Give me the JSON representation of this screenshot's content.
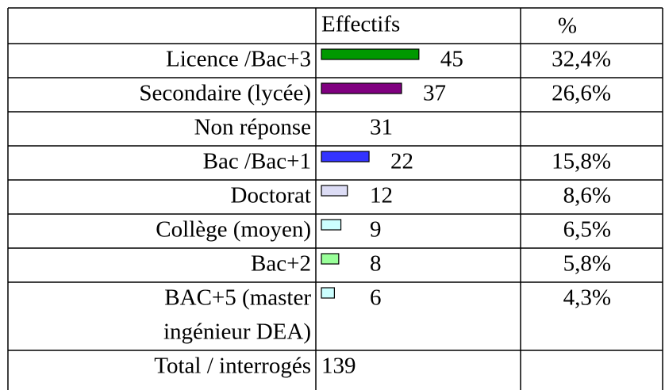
{
  "table": {
    "header": {
      "effectifs": "Effectifs",
      "percent": "%"
    },
    "rows": [
      {
        "label": "Licence  /Bac+3",
        "count": 45,
        "percent": "32,4%",
        "color": "#009900"
      },
      {
        "label": "Secondaire (lycée)",
        "count": 37,
        "percent": "26,6%",
        "color": "#800080"
      },
      {
        "label": "Non réponse",
        "count": 31
      },
      {
        "label": "Bac /Bac+1",
        "count": 22,
        "percent": "15,8%",
        "color": "#3333ff"
      },
      {
        "label": "Doctorat",
        "count": 12,
        "percent": "8,6%",
        "color": "#dcdcf5"
      },
      {
        "label": "Collège (moyen)",
        "count": 9,
        "percent": "6,5%",
        "color": "#ccffff"
      },
      {
        "label": "Bac+2",
        "count": 8,
        "percent": "5,8%",
        "color": "#99ff99"
      },
      {
        "label": [
          "BAC+5 (master",
          "ingénieur DEA)"
        ],
        "count": 6,
        "percent": "4,3%",
        "color": "#ccffff"
      }
    ],
    "total": {
      "label": "Total / interrogés",
      "count": 139
    }
  }
}
